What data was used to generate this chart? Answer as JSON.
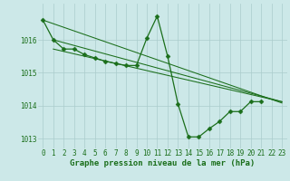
{
  "background_color": "#cce8e8",
  "grid_color": "#aacccc",
  "line_color": "#1a6e1a",
  "marker_color": "#1a6e1a",
  "series_main": {
    "x": [
      0,
      1,
      2,
      3,
      4,
      5,
      6,
      7,
      8,
      9,
      10,
      11,
      12,
      13,
      14,
      15,
      16,
      17,
      18,
      19,
      20,
      21
    ],
    "y": [
      1016.6,
      1016.0,
      1015.72,
      1015.72,
      1015.55,
      1015.45,
      1015.35,
      1015.28,
      1015.22,
      1015.22,
      1016.05,
      1016.72,
      1015.5,
      1014.05,
      1013.05,
      1013.05,
      1013.3,
      1013.52,
      1013.82,
      1013.82,
      1014.12,
      1014.12
    ]
  },
  "series_lines": [
    {
      "x0": 1,
      "y0": 1016.0,
      "x1": 23,
      "y1": 1014.12
    },
    {
      "x0": 1,
      "y0": 1016.0,
      "x1": 23,
      "y1": 1014.12
    },
    {
      "x0": 0,
      "y0": 1016.6,
      "x1": 23,
      "y1": 1014.08
    }
  ],
  "xlabel": "Graphe pression niveau de la mer (hPa)",
  "ylim": [
    1012.7,
    1017.1
  ],
  "xlim": [
    -0.5,
    23.5
  ],
  "yticks": [
    1013,
    1014,
    1015,
    1016
  ],
  "xticks": [
    0,
    1,
    2,
    3,
    4,
    5,
    6,
    7,
    8,
    9,
    10,
    11,
    12,
    13,
    14,
    15,
    16,
    17,
    18,
    19,
    20,
    21,
    22,
    23
  ],
  "xtick_labels": [
    "0",
    "1",
    "2",
    "3",
    "4",
    "5",
    "6",
    "7",
    "8",
    "9",
    "10",
    "11",
    "12",
    "13",
    "14",
    "15",
    "16",
    "17",
    "18",
    "19",
    "20",
    "21",
    "22",
    "23"
  ],
  "xlabel_fontsize": 6.5,
  "tick_fontsize": 5.5,
  "tick_color": "#1a6e1a",
  "markersize": 2.5,
  "linewidth_main": 0.9,
  "linewidth_diag": 0.75
}
